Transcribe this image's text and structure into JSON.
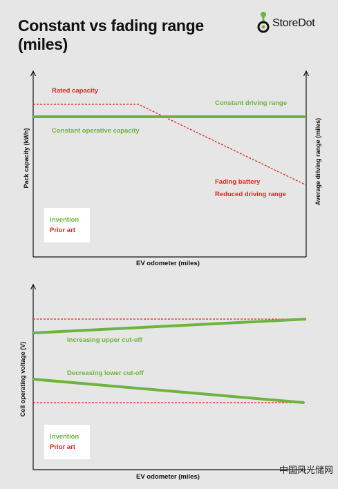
{
  "header": {
    "title_line1": "Constant vs fading range",
    "title_line2": "(miles)",
    "brand": "StoreDot"
  },
  "colors": {
    "green": "#6db33f",
    "red": "#e1251b",
    "background": "#e6e6e6",
    "axis": "#111111"
  },
  "chart_top": {
    "ylabel_left": "Pack capacity (kWh)",
    "ylabel_right": "Average driving range (miles)",
    "xlabel": "EV odometer (miles)",
    "labels": {
      "rated_capacity": "Rated capacity",
      "constant_driving_range": "Constant driving range",
      "constant_operative_capacity": "Constant operative capacity",
      "fading_battery": "Fading battery",
      "reduced_driving_range": "Reduced driving range"
    },
    "legend": {
      "invention": "Invention",
      "prior_art": "Prior art"
    }
  },
  "chart_bottom": {
    "ylabel_left": "Cell operating voltage (V)",
    "xlabel": "EV odometer (miles)",
    "labels": {
      "increasing_upper_cutoff": "Increasing upper cut-off",
      "decreasing_lower_cutoff": "Decreasing lower cut-off"
    },
    "legend": {
      "invention": "Invention",
      "prior_art": "Prior art"
    }
  },
  "watermark": "中国风光储网"
}
